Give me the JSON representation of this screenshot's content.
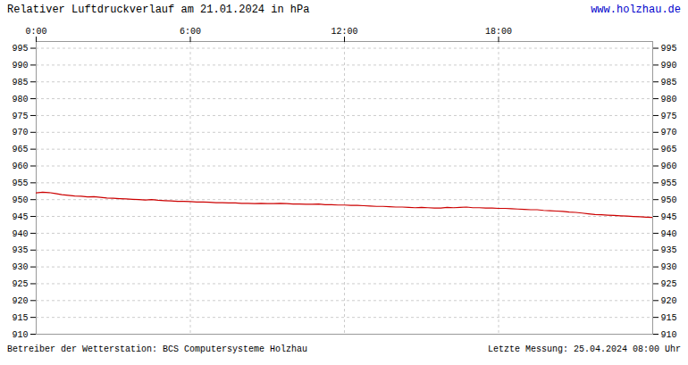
{
  "chart_data": {
    "type": "line",
    "title": "Relativer Luftdruckverlauf am 21.01.2024 in hPa",
    "annotations": [
      "www.holzhau.de",
      "Betreiber der Wetterstation: BCS Computersysteme Holzhau",
      "Letzte Messung: 25.04.2024 08:00 Uhr"
    ],
    "x": [
      0,
      15,
      30,
      45,
      60,
      75,
      90,
      105,
      120,
      135,
      150,
      165,
      180,
      195,
      210,
      225,
      240,
      255,
      270,
      285,
      300,
      315,
      330,
      345,
      360,
      375,
      390,
      405,
      420,
      435,
      450,
      465,
      480,
      495,
      510,
      525,
      540,
      555,
      570,
      585,
      600,
      615,
      630,
      645,
      660,
      675,
      690,
      705,
      720,
      735,
      750,
      765,
      780,
      795,
      810,
      825,
      840,
      855,
      870,
      885,
      900,
      915,
      930,
      945,
      960,
      975,
      990,
      1005,
      1020,
      1035,
      1050,
      1065,
      1080,
      1095,
      1110,
      1125,
      1140,
      1155,
      1170,
      1185,
      1200,
      1215,
      1230,
      1245,
      1260,
      1275,
      1290,
      1305,
      1320,
      1335,
      1350,
      1365,
      1380,
      1395,
      1410,
      1425,
      1440
    ],
    "values": [
      952.0,
      952.2,
      952.1,
      951.8,
      951.5,
      951.3,
      951.1,
      951.0,
      950.8,
      950.9,
      950.7,
      950.5,
      950.4,
      950.3,
      950.2,
      950.1,
      950.0,
      949.9,
      950.0,
      949.8,
      949.7,
      949.6,
      949.5,
      949.5,
      949.4,
      949.3,
      949.3,
      949.2,
      949.1,
      949.1,
      949.0,
      949.0,
      948.9,
      948.9,
      948.8,
      948.9,
      948.8,
      948.8,
      948.9,
      948.8,
      948.7,
      948.7,
      948.6,
      948.6,
      948.7,
      948.5,
      948.5,
      948.4,
      948.4,
      948.3,
      948.3,
      948.2,
      948.1,
      948.0,
      948.0,
      947.9,
      947.8,
      947.8,
      947.7,
      947.6,
      947.7,
      947.6,
      947.5,
      947.5,
      947.7,
      947.6,
      947.7,
      947.8,
      947.6,
      947.6,
      947.5,
      947.5,
      947.4,
      947.4,
      947.3,
      947.2,
      947.1,
      947.0,
      947.0,
      946.8,
      946.7,
      946.6,
      946.5,
      946.3,
      946.2,
      946.0,
      945.8,
      945.6,
      945.5,
      945.4,
      945.3,
      945.2,
      945.1,
      945.0,
      944.9,
      944.8,
      944.7
    ],
    "color": "#cc0000",
    "xlim": [
      0,
      1440
    ],
    "xticks": [
      {
        "value": 0,
        "label": "0:00"
      },
      {
        "value": 360,
        "label": "6:00"
      },
      {
        "value": 720,
        "label": "12:00"
      },
      {
        "value": 1080,
        "label": "18:00"
      }
    ],
    "ylim": [
      910,
      997
    ],
    "yticks": [
      910,
      915,
      920,
      925,
      930,
      935,
      940,
      945,
      950,
      955,
      960,
      965,
      970,
      975,
      980,
      985,
      990,
      995
    ],
    "grid": true
  }
}
